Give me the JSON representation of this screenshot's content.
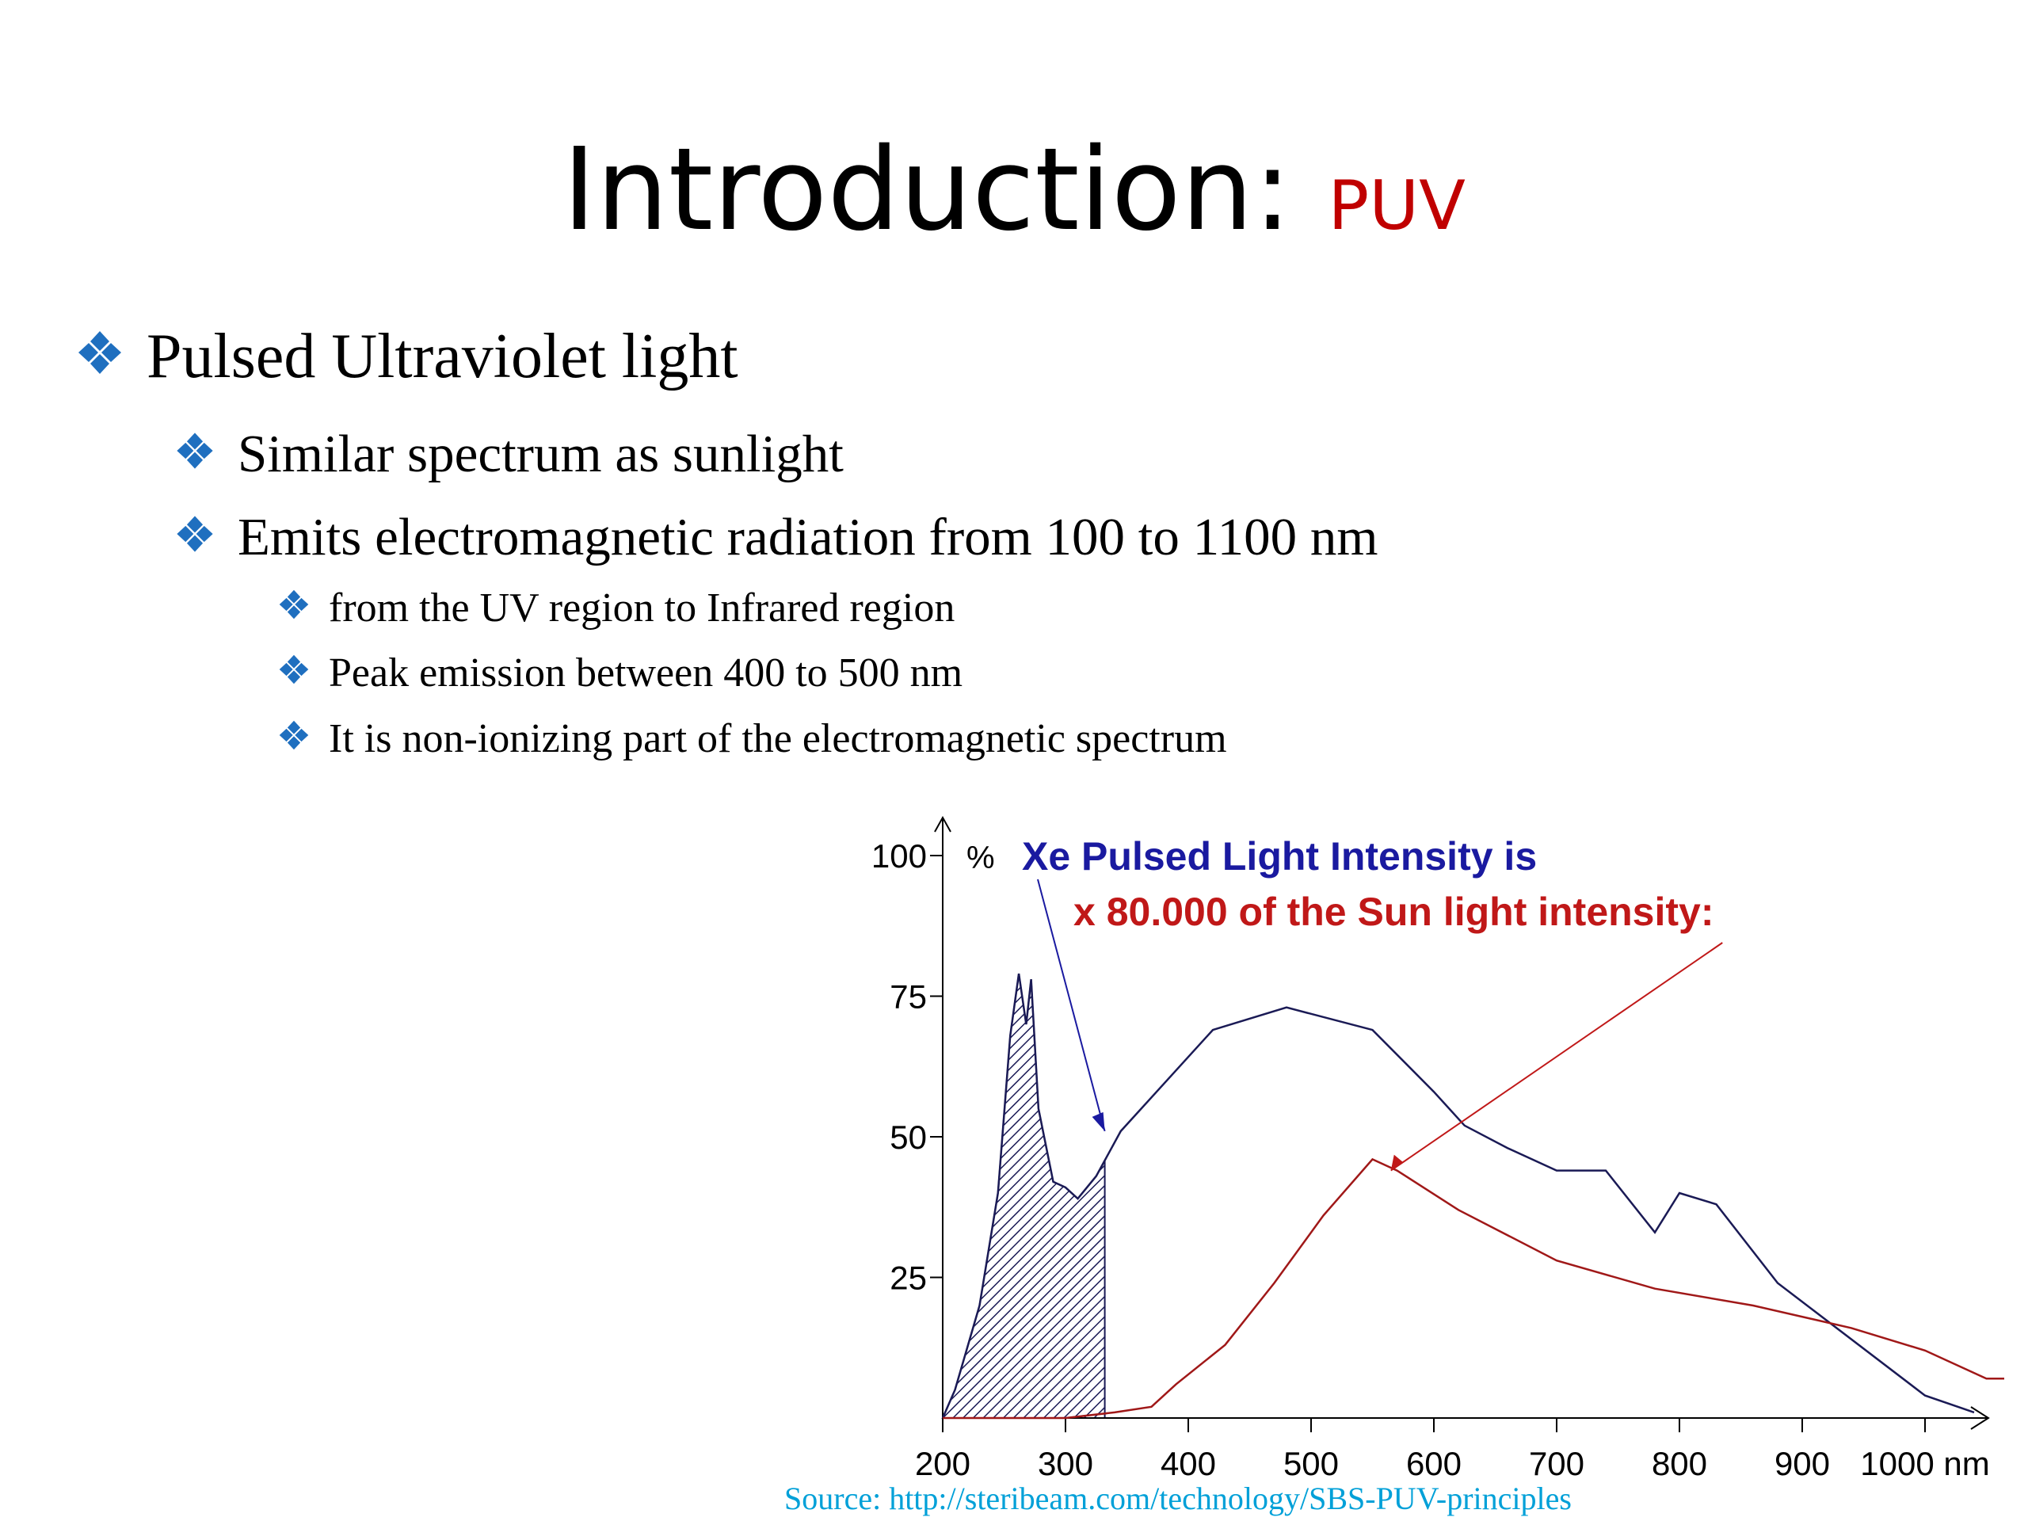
{
  "slide": {
    "title_main": "Introduction:",
    "title_accent": "PUV",
    "accent_color": "#c00000",
    "bullet_color": "#1f6fbf",
    "bullet_icon": "four-diamond-bullet-icon",
    "bullets": [
      {
        "text": "Pulsed Ultraviolet light",
        "level": 1
      },
      {
        "text": "Similar spectrum as sunlight",
        "level": 2
      },
      {
        "text": "Emits electromagnetic radiation from 100 to 1100 nm",
        "level": 2
      },
      {
        "text": "from the UV region to Infrared region",
        "level": 3
      },
      {
        "text": "Peak emission between 400 to 500 nm",
        "level": 3
      },
      {
        "text": "It is non-ionizing part of the electromagnetic spectrum",
        "level": 3
      }
    ],
    "source": "Source: http://steribeam.com/technology/SBS-PUV-principles"
  },
  "chart_data": {
    "type": "line",
    "xlabel": "nm",
    "ylabel": "%",
    "xlim": [
      200,
      1050
    ],
    "ylim": [
      0,
      100
    ],
    "x_ticks": [
      200,
      300,
      400,
      500,
      600,
      700,
      800,
      900,
      1000
    ],
    "x_tick_labels": [
      "200",
      "300",
      "400",
      "500",
      "600",
      "700",
      "800",
      "900",
      "1000 nm"
    ],
    "y_ticks": [
      25,
      50,
      75,
      100
    ],
    "y_tick_labels": [
      "25",
      "50",
      "75",
      "100"
    ],
    "y_unit_label": "%",
    "annotation_line1": "Xe Pulsed Light Intensity is",
    "annotation_line2": "x 80.000 of the Sun light intensity:",
    "annotation1_color": "#1a1aa0",
    "annotation2_color": "#c01818",
    "series": [
      {
        "color": "#1a1a55",
        "points": [
          [
            200,
            0
          ],
          [
            210,
            5
          ],
          [
            230,
            20
          ],
          [
            245,
            40
          ],
          [
            255,
            68
          ],
          [
            262,
            79
          ],
          [
            268,
            70
          ],
          [
            272,
            78
          ],
          [
            278,
            55
          ],
          [
            290,
            42
          ],
          [
            300,
            41
          ],
          [
            310,
            39
          ],
          [
            325,
            43
          ],
          [
            345,
            51
          ],
          [
            370,
            57
          ],
          [
            420,
            69
          ],
          [
            480,
            73
          ],
          [
            550,
            69
          ],
          [
            600,
            58
          ],
          [
            625,
            52
          ],
          [
            660,
            48
          ],
          [
            700,
            44
          ],
          [
            740,
            44
          ],
          [
            780,
            33
          ],
          [
            800,
            40
          ],
          [
            830,
            38
          ],
          [
            880,
            24
          ],
          [
            1000,
            4
          ],
          [
            1040,
            1
          ]
        ]
      },
      {
        "color": "#a01818",
        "points": [
          [
            200,
            0
          ],
          [
            300,
            0
          ],
          [
            340,
            1
          ],
          [
            370,
            2
          ],
          [
            390,
            6
          ],
          [
            430,
            13
          ],
          [
            470,
            24
          ],
          [
            510,
            36
          ],
          [
            550,
            46
          ],
          [
            570,
            44
          ],
          [
            620,
            37
          ],
          [
            700,
            28
          ],
          [
            780,
            23
          ],
          [
            860,
            20
          ],
          [
            940,
            16
          ],
          [
            1000,
            12
          ],
          [
            1050,
            7
          ],
          [
            1080,
            7
          ]
        ]
      }
    ],
    "uv_fill_range": [
      200,
      332
    ],
    "uv_fill_color": "#1a1a55"
  }
}
